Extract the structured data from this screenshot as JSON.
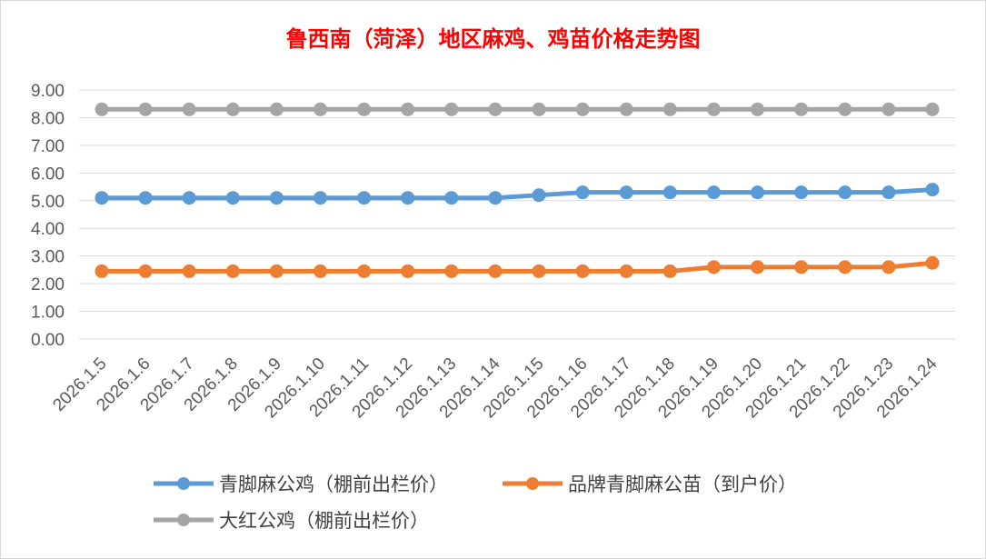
{
  "chart_data": {
    "type": "line",
    "title": "鲁西南（菏泽）地区麻鸡、鸡苗价格走势图",
    "categories": [
      "2026.1.5",
      "2026.1.6",
      "2026.1.7",
      "2026.1.8",
      "2026.1.9",
      "2026.1.10",
      "2026.1.11",
      "2026.1.12",
      "2026.1.13",
      "2026.1.14",
      "2026.1.15",
      "2026.1.16",
      "2026.1.17",
      "2026.1.18",
      "2026.1.19",
      "2026.1.20",
      "2026.1.21",
      "2026.1.22",
      "2026.1.23",
      "2026.1.24"
    ],
    "series": [
      {
        "name": "青脚麻公鸡（棚前出栏价）",
        "color": "#5b9bd5",
        "values": [
          5.1,
          5.1,
          5.1,
          5.1,
          5.1,
          5.1,
          5.1,
          5.1,
          5.1,
          5.1,
          5.2,
          5.3,
          5.3,
          5.3,
          5.3,
          5.3,
          5.3,
          5.3,
          5.3,
          5.4
        ]
      },
      {
        "name": "品牌青脚麻公苗（到户价）",
        "color": "#ed7d31",
        "values": [
          2.45,
          2.45,
          2.45,
          2.45,
          2.45,
          2.45,
          2.45,
          2.45,
          2.45,
          2.45,
          2.45,
          2.45,
          2.45,
          2.45,
          2.6,
          2.6,
          2.6,
          2.6,
          2.6,
          2.75
        ]
      },
      {
        "name": "大红公鸡（棚前出栏价）",
        "color": "#a5a5a5",
        "values": [
          8.3,
          8.3,
          8.3,
          8.3,
          8.3,
          8.3,
          8.3,
          8.3,
          8.3,
          8.3,
          8.3,
          8.3,
          8.3,
          8.3,
          8.3,
          8.3,
          8.3,
          8.3,
          8.3,
          8.3
        ]
      }
    ],
    "y_ticks": [
      "0.00",
      "1.00",
      "2.00",
      "3.00",
      "4.00",
      "5.00",
      "6.00",
      "7.00",
      "8.00",
      "9.00"
    ],
    "ylim": [
      0,
      9
    ],
    "grid": true,
    "legend_position": "bottom"
  }
}
